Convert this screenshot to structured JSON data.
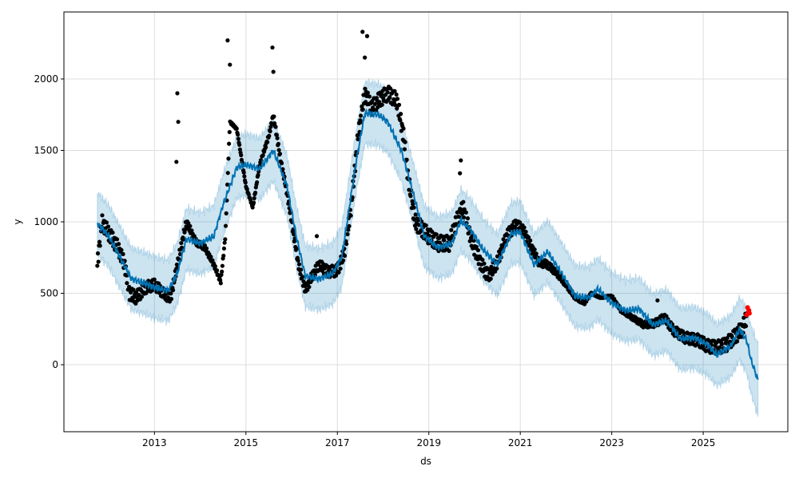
{
  "chart_data": {
    "type": "line",
    "title": "",
    "xlabel": "ds",
    "ylabel": "y",
    "xlim": [
      2011.02,
      2026.85
    ],
    "ylim": [
      -469,
      2469
    ],
    "xticks": [
      {
        "v": 2013,
        "label": "2013"
      },
      {
        "v": 2015,
        "label": "2015"
      },
      {
        "v": 2017,
        "label": "2017"
      },
      {
        "v": 2019,
        "label": "2019"
      },
      {
        "v": 2021,
        "label": "2021"
      },
      {
        "v": 2023,
        "label": "2023"
      },
      {
        "v": 2025,
        "label": "2025"
      }
    ],
    "yticks": [
      {
        "v": 0,
        "label": "0"
      },
      {
        "v": 500,
        "label": "500"
      },
      {
        "v": 1000,
        "label": "1000"
      },
      {
        "v": 1500,
        "label": "1500"
      },
      {
        "v": 2000,
        "label": "2000"
      }
    ],
    "grid": true,
    "colors": {
      "forecast": "#0072B2",
      "band": "#0072B2",
      "observed": "#000000",
      "recent": "#ff0000"
    },
    "forecast": [
      [
        2011.75,
        990
      ],
      [
        2012.0,
        900
      ],
      [
        2012.3,
        720
      ],
      [
        2012.5,
        600
      ],
      [
        2012.8,
        570
      ],
      [
        2013.0,
        540
      ],
      [
        2013.3,
        520
      ],
      [
        2013.5,
        640
      ],
      [
        2013.7,
        880
      ],
      [
        2014.0,
        850
      ],
      [
        2014.3,
        900
      ],
      [
        2014.5,
        1120
      ],
      [
        2014.8,
        1380
      ],
      [
        2015.0,
        1400
      ],
      [
        2015.3,
        1370
      ],
      [
        2015.6,
        1500
      ],
      [
        2015.9,
        1250
      ],
      [
        2016.1,
        900
      ],
      [
        2016.3,
        620
      ],
      [
        2016.6,
        600
      ],
      [
        2016.9,
        640
      ],
      [
        2017.1,
        760
      ],
      [
        2017.4,
        1400
      ],
      [
        2017.6,
        1760
      ],
      [
        2017.9,
        1750
      ],
      [
        2018.1,
        1700
      ],
      [
        2018.4,
        1500
      ],
      [
        2018.7,
        1150
      ],
      [
        2018.9,
        900
      ],
      [
        2019.2,
        820
      ],
      [
        2019.5,
        850
      ],
      [
        2019.7,
        1010
      ],
      [
        2019.9,
        950
      ],
      [
        2020.2,
        800
      ],
      [
        2020.5,
        700
      ],
      [
        2020.8,
        920
      ],
      [
        2021.0,
        930
      ],
      [
        2021.3,
        700
      ],
      [
        2021.6,
        790
      ],
      [
        2021.9,
        640
      ],
      [
        2022.2,
        480
      ],
      [
        2022.5,
        470
      ],
      [
        2022.7,
        530
      ],
      [
        2023.0,
        430
      ],
      [
        2023.3,
        380
      ],
      [
        2023.6,
        390
      ],
      [
        2023.9,
        280
      ],
      [
        2024.2,
        310
      ],
      [
        2024.5,
        180
      ],
      [
        2024.8,
        190
      ],
      [
        2025.1,
        140
      ],
      [
        2025.3,
        70
      ],
      [
        2025.6,
        130
      ],
      [
        2025.8,
        250
      ],
      [
        2025.95,
        170
      ],
      [
        2026.05,
        30
      ],
      [
        2026.2,
        -110
      ]
    ],
    "band_halfwidth": [
      [
        2011.75,
        215
      ],
      [
        2025.8,
        215
      ],
      [
        2026.2,
        250
      ]
    ],
    "observed": [
      [
        2011.75,
        700
      ],
      [
        2011.85,
        1000
      ],
      [
        2012.0,
        920
      ],
      [
        2012.2,
        820
      ],
      [
        2012.35,
        700
      ],
      [
        2012.45,
        500
      ],
      [
        2012.6,
        470
      ],
      [
        2012.8,
        540
      ],
      [
        2013.0,
        560
      ],
      [
        2013.2,
        500
      ],
      [
        2013.35,
        460
      ],
      [
        2013.5,
        700
      ],
      [
        2013.6,
        850
      ],
      [
        2013.7,
        1000
      ],
      [
        2013.9,
        860
      ],
      [
        2014.1,
        820
      ],
      [
        2014.3,
        700
      ],
      [
        2014.45,
        580
      ],
      [
        2014.55,
        900
      ],
      [
        2014.65,
        1700
      ],
      [
        2014.8,
        1650
      ],
      [
        2014.9,
        1450
      ],
      [
        2015.0,
        1250
      ],
      [
        2015.15,
        1100
      ],
      [
        2015.3,
        1400
      ],
      [
        2015.5,
        1600
      ],
      [
        2015.6,
        1750
      ],
      [
        2015.75,
        1450
      ],
      [
        2015.9,
        1200
      ],
      [
        2016.0,
        1000
      ],
      [
        2016.15,
        700
      ],
      [
        2016.3,
        520
      ],
      [
        2016.45,
        620
      ],
      [
        2016.6,
        700
      ],
      [
        2016.8,
        650
      ],
      [
        2017.0,
        660
      ],
      [
        2017.15,
        780
      ],
      [
        2017.3,
        1100
      ],
      [
        2017.45,
        1600
      ],
      [
        2017.6,
        1900
      ],
      [
        2017.75,
        1800
      ],
      [
        2017.9,
        1850
      ],
      [
        2018.1,
        1900
      ],
      [
        2018.3,
        1850
      ],
      [
        2018.45,
        1600
      ],
      [
        2018.55,
        1300
      ],
      [
        2018.7,
        1000
      ],
      [
        2018.85,
        950
      ],
      [
        2019.0,
        900
      ],
      [
        2019.2,
        850
      ],
      [
        2019.45,
        850
      ],
      [
        2019.6,
        1000
      ],
      [
        2019.75,
        1100
      ],
      [
        2019.95,
        850
      ],
      [
        2020.15,
        700
      ],
      [
        2020.3,
        620
      ],
      [
        2020.5,
        720
      ],
      [
        2020.7,
        900
      ],
      [
        2020.9,
        980
      ],
      [
        2021.05,
        950
      ],
      [
        2021.2,
        850
      ],
      [
        2021.4,
        720
      ],
      [
        2021.6,
        700
      ],
      [
        2021.8,
        640
      ],
      [
        2022.0,
        560
      ],
      [
        2022.2,
        470
      ],
      [
        2022.4,
        430
      ],
      [
        2022.55,
        500
      ],
      [
        2022.75,
        470
      ],
      [
        2023.0,
        480
      ],
      [
        2023.2,
        380
      ],
      [
        2023.45,
        330
      ],
      [
        2023.7,
        280
      ],
      [
        2023.95,
        290
      ],
      [
        2024.15,
        330
      ],
      [
        2024.35,
        240
      ],
      [
        2024.6,
        190
      ],
      [
        2024.9,
        170
      ],
      [
        2025.1,
        130
      ],
      [
        2025.3,
        120
      ],
      [
        2025.5,
        140
      ],
      [
        2025.7,
        200
      ],
      [
        2025.85,
        250
      ],
      [
        2025.95,
        330
      ]
    ],
    "spikes": [
      [
        2013.5,
        1900
      ],
      [
        2013.52,
        1700
      ],
      [
        2013.48,
        1420
      ],
      [
        2014.6,
        2270
      ],
      [
        2014.65,
        2100
      ],
      [
        2015.58,
        2220
      ],
      [
        2015.6,
        2050
      ],
      [
        2017.55,
        2330
      ],
      [
        2017.65,
        2300
      ],
      [
        2017.6,
        2150
      ],
      [
        2019.7,
        1430
      ],
      [
        2019.68,
        1340
      ],
      [
        2016.55,
        900
      ],
      [
        2024.0,
        450
      ]
    ],
    "recent": [
      [
        2025.95,
        350
      ],
      [
        2025.97,
        400
      ],
      [
        2025.99,
        370
      ],
      [
        2026.0,
        380
      ],
      [
        2026.01,
        360
      ]
    ]
  }
}
